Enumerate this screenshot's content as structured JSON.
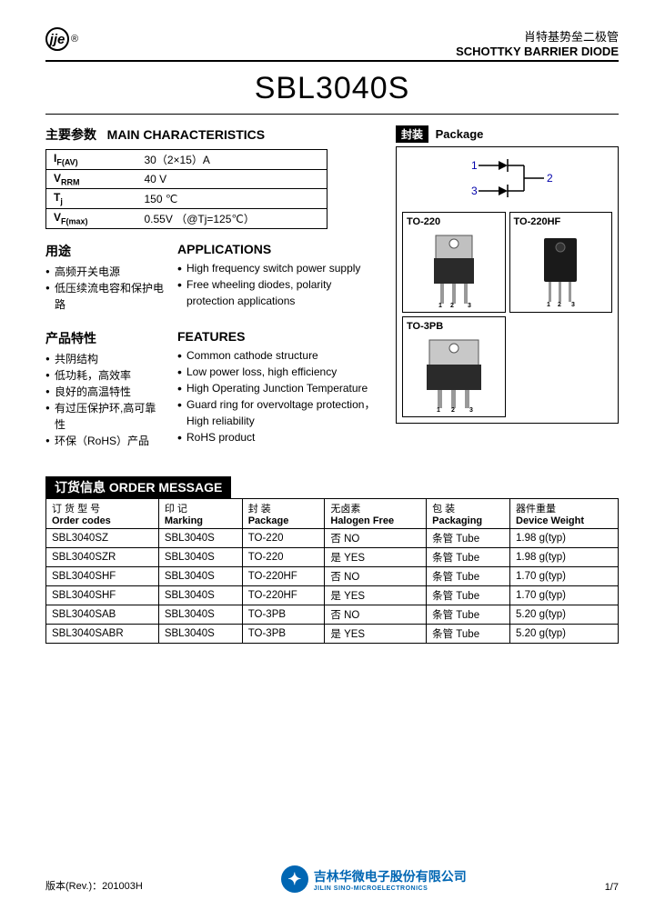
{
  "header": {
    "cn": "肖特基势垒二极管",
    "en": "SCHOTTKY BARRIER DIODE"
  },
  "part_number": "SBL3040S",
  "characteristics": {
    "title_cn": "主要参数",
    "title_en": "MAIN   CHARACTERISTICS",
    "rows": [
      {
        "param": "I<sub>F(AV)</sub>",
        "value": "30（2×15）A"
      },
      {
        "param": "V<sub>RRM</sub>",
        "value": "40 V"
      },
      {
        "param": "T<sub>j</sub>",
        "value": "150 ℃"
      },
      {
        "param": "V<sub>F(max)</sub>",
        "value": "0.55V （@Tj=125℃）"
      }
    ]
  },
  "applications": {
    "cn_title": "用途",
    "cn_items": [
      "高频开关电源",
      "低压续流电容和保护电路"
    ],
    "en_title": "APPLICATIONS",
    "en_items": [
      "High frequency switch power supply",
      "Free wheeling diodes, polarity protection applications"
    ]
  },
  "features": {
    "cn_title": "产品特性",
    "cn_items": [
      "共阴结构",
      "低功耗，高效率",
      "良好的高温特性",
      "有过压保护环,高可靠性",
      "环保（RoHS）产品"
    ],
    "en_title": "FEATURES",
    "en_items": [
      "Common cathode structure",
      "Low power loss, high efficiency",
      "High Operating Junction Temperature",
      "Guard ring for overvoltage protection，High reliability",
      "RoHS product"
    ]
  },
  "package": {
    "header_cn": "封装",
    "header_en": "Package",
    "pins": {
      "p1": "1",
      "p2": "2",
      "p3": "3"
    },
    "types": [
      "TO-220",
      "TO-220HF",
      "TO-3PB"
    ]
  },
  "order": {
    "header": "订货信息  ORDER MESSAGE",
    "columns": [
      {
        "cn": "订 货 型 号",
        "en": "Order codes"
      },
      {
        "cn": "印    记",
        "en": "Marking"
      },
      {
        "cn": "封    装",
        "en": "Package"
      },
      {
        "cn": "无卤素",
        "en": "Halogen Free"
      },
      {
        "cn": "包    装",
        "en": "Packaging"
      },
      {
        "cn": "器件重量",
        "en": "Device Weight"
      }
    ],
    "rows": [
      [
        "SBL3040SZ",
        "SBL3040S",
        "TO-220",
        "否   NO",
        "条管  Tube",
        "1.98 g(typ)"
      ],
      [
        "SBL3040SZR",
        "SBL3040S",
        "TO-220",
        "是   YES",
        "条管  Tube",
        "1.98 g(typ)"
      ],
      [
        "SBL3040SHF",
        "SBL3040S",
        "TO-220HF",
        "否   NO",
        "条管  Tube",
        "1.70 g(typ)"
      ],
      [
        "SBL3040SHF",
        "SBL3040S",
        "TO-220HF",
        "是   YES",
        "条管  Tube",
        "1.70 g(typ)"
      ],
      [
        "SBL3040SAB",
        "SBL3040S",
        "TO-3PB",
        "否   NO",
        "条管  Tube",
        "5.20 g(typ)"
      ],
      [
        "SBL3040SABR",
        "SBL3040S",
        "TO-3PB",
        "是   YES",
        "条管  Tube",
        "5.20 g(typ)"
      ]
    ]
  },
  "footer": {
    "rev": "版本(Rev.)：201003H",
    "company_cn": "吉林华微电子股份有限公司",
    "company_en": "JILIN SINO-MICROELECTRONICS",
    "page": "1/7"
  },
  "colors": {
    "brand_blue": "#0066b3"
  }
}
